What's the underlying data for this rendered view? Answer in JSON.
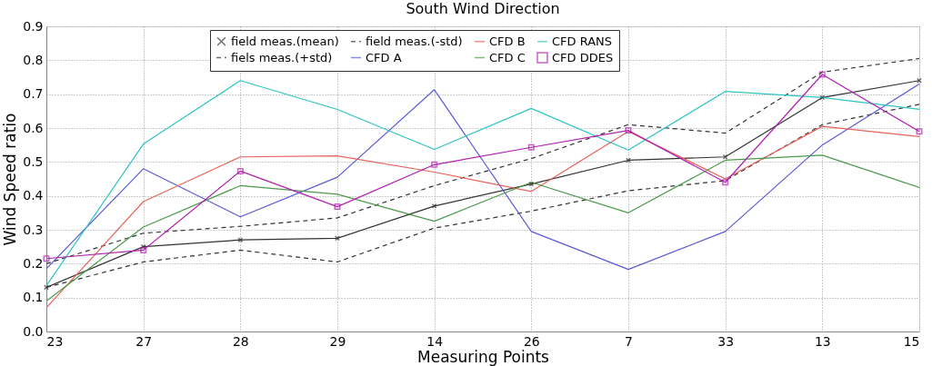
{
  "chart_data": {
    "type": "line",
    "title": "South Wind Direction",
    "xlabel": "Measuring Points",
    "ylabel": "Wind Speed ratio",
    "categories": [
      "23",
      "27",
      "28",
      "29",
      "14",
      "26",
      "7",
      "33",
      "13",
      "15"
    ],
    "ylim": [
      0,
      0.9
    ],
    "yticks": [
      {
        "value": 0,
        "label": "0.0"
      },
      0.1,
      0.2,
      0.3,
      0.4,
      0.5,
      0.6,
      0.7,
      0.8,
      0.9
    ],
    "grid": true,
    "legend": "top",
    "line_style": "solid",
    "series": [
      {
        "name": "field meas.(mean)",
        "color": "#333333",
        "marker": "cross",
        "values": [
          0.13,
          0.25,
          0.27,
          0.275,
          0.37,
          0.435,
          0.505,
          0.515,
          0.69,
          0.74
        ]
      },
      {
        "name": "fiels meas.(+std)",
        "color": "#333333",
        "line_style": "dashed",
        "values": [
          0.2,
          0.29,
          0.31,
          0.335,
          0.43,
          0.51,
          0.61,
          0.585,
          0.765,
          0.805
        ]
      },
      {
        "name": "field meas.(-std)",
        "color": "#333333",
        "line_style": "dashed",
        "values": [
          0.13,
          0.205,
          0.24,
          0.205,
          0.305,
          0.355,
          0.415,
          0.445,
          0.61,
          0.67
        ]
      },
      {
        "name": "CFD A",
        "color": "#5a5ad6",
        "values": [
          0.185,
          0.48,
          0.338,
          0.455,
          0.713,
          0.295,
          0.183,
          0.295,
          0.55,
          0.73
        ]
      },
      {
        "name": "CFD B",
        "color": "#e8635a",
        "values": [
          0.07,
          0.383,
          0.515,
          0.518,
          0.47,
          0.413,
          0.59,
          0.45,
          0.605,
          0.575
        ]
      },
      {
        "name": "CFD C",
        "color": "#4c9a4c",
        "values": [
          0.09,
          0.308,
          0.43,
          0.405,
          0.325,
          0.44,
          0.35,
          0.505,
          0.52,
          0.425
        ]
      },
      {
        "name": "CFD RANS",
        "color": "#2ec4c4",
        "values": [
          0.135,
          0.553,
          0.74,
          0.655,
          0.537,
          0.658,
          0.535,
          0.708,
          0.69,
          0.655
        ]
      },
      {
        "name": "CFD DDES",
        "color": "#b020b0",
        "marker": "square",
        "values": [
          0.215,
          0.24,
          0.473,
          0.368,
          0.492,
          0.543,
          0.593,
          0.44,
          0.758,
          0.59
        ]
      }
    ]
  }
}
